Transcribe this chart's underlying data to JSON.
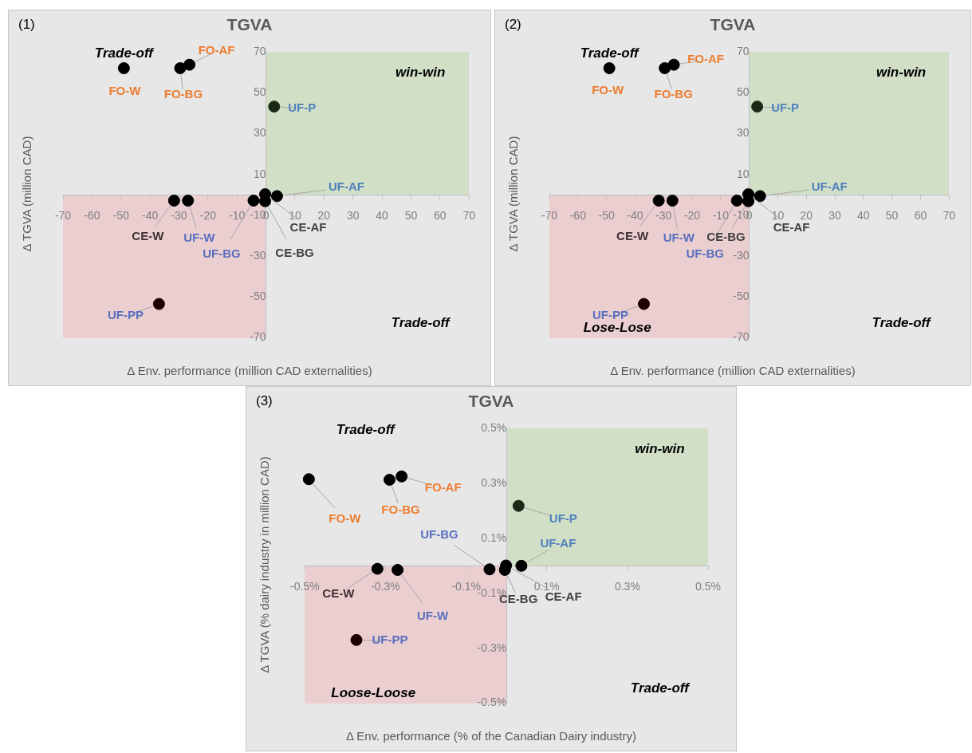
{
  "chart_data": [
    {
      "type": "scatter",
      "subtitle": "(1)",
      "title": "TGVA",
      "xlabel": "Δ Env. performance (million CAD externalities)",
      "ylabel": "Δ TGVA (million CAD)",
      "xlim": [
        -70,
        70
      ],
      "ylim": [
        -70,
        70
      ],
      "xticks": [
        -70,
        -60,
        -50,
        -40,
        -30,
        -20,
        -10,
        0,
        10,
        20,
        30,
        40,
        50,
        60,
        70
      ],
      "yticks": [
        70,
        50,
        30,
        10,
        -10,
        -30,
        -50,
        -70
      ],
      "grid": false,
      "legend": false,
      "marker": "circle",
      "annotations": [
        "Trade-off",
        "win-win",
        "Trade-off"
      ],
      "series": [
        {
          "name": "FO-W",
          "color": "#000000",
          "x": [
            -49
          ],
          "values": [
            62
          ]
        },
        {
          "name": "FO-BG",
          "color": "#000000",
          "x": [
            -29.6
          ],
          "values": [
            62
          ]
        },
        {
          "name": "FO-AF",
          "color": "#000000",
          "x": [
            -26.4
          ],
          "values": [
            63.7
          ]
        },
        {
          "name": "UF-P",
          "color": "#1b2a16",
          "x": [
            2.8
          ],
          "values": [
            43.2
          ]
        },
        {
          "name": "CE-W",
          "color": "#000000",
          "x": [
            -31.7
          ],
          "values": [
            -2.8
          ]
        },
        {
          "name": "UF-W",
          "color": "#000000",
          "x": [
            -26.9
          ],
          "values": [
            -2.8
          ]
        },
        {
          "name": "UF-BG",
          "color": "#000000",
          "x": [
            -4.3
          ],
          "values": [
            -2.8
          ]
        },
        {
          "name": "CE-BG",
          "color": "#000000",
          "x": [
            -0.3
          ],
          "values": [
            -3.1
          ]
        },
        {
          "name": "CE-AF",
          "color": "#000000",
          "x": [
            -0.3
          ],
          "values": [
            0.3
          ]
        },
        {
          "name": "UF-AF",
          "color": "#000000",
          "x": [
            3.8
          ],
          "values": [
            -0.6
          ]
        },
        {
          "name": "UF-PP",
          "color": "#1e0000",
          "x": [
            -36.9
          ],
          "values": [
            -53.4
          ]
        }
      ]
    },
    {
      "type": "scatter",
      "subtitle": "(2)",
      "title": "TGVA",
      "xlabel": "Δ Env. performance (million CAD externalities)",
      "ylabel": "Δ TGVA (million CAD)",
      "xlim": [
        -70,
        70
      ],
      "ylim": [
        -70,
        70
      ],
      "xticks": [
        -70,
        -60,
        -50,
        -40,
        -30,
        -20,
        -10,
        0,
        10,
        20,
        30,
        40,
        50,
        60,
        70
      ],
      "yticks": [
        70,
        50,
        30,
        10,
        -10,
        -30,
        -50,
        -70
      ],
      "grid": false,
      "legend": false,
      "marker": "circle",
      "annotations": [
        "Trade-off",
        "win-win",
        "Trade-off",
        "Lose-Lose"
      ],
      "series": [
        {
          "name": "FO-W",
          "color": "#000000",
          "x": [
            -49
          ],
          "values": [
            62
          ]
        },
        {
          "name": "FO-BG",
          "color": "#000000",
          "x": [
            -29.6
          ],
          "values": [
            62
          ]
        },
        {
          "name": "FO-AF",
          "color": "#000000",
          "x": [
            -26.4
          ],
          "values": [
            63.7
          ]
        },
        {
          "name": "UF-P",
          "color": "#1b2a16",
          "x": [
            2.8
          ],
          "values": [
            43.2
          ]
        },
        {
          "name": "CE-W",
          "color": "#000000",
          "x": [
            -31.7
          ],
          "values": [
            -2.8
          ]
        },
        {
          "name": "UF-W",
          "color": "#000000",
          "x": [
            -26.9
          ],
          "values": [
            -2.8
          ]
        },
        {
          "name": "UF-BG",
          "color": "#000000",
          "x": [
            -4.3
          ],
          "values": [
            -2.8
          ]
        },
        {
          "name": "CE-BG",
          "color": "#000000",
          "x": [
            -0.3
          ],
          "values": [
            -3.1
          ]
        },
        {
          "name": "CE-AF",
          "color": "#000000",
          "x": [
            -0.3
          ],
          "values": [
            0.3
          ]
        },
        {
          "name": "UF-AF",
          "color": "#000000",
          "x": [
            3.8
          ],
          "values": [
            -0.6
          ]
        },
        {
          "name": "UF-PP",
          "color": "#1e0000",
          "x": [
            -36.9
          ],
          "values": [
            -53.4
          ]
        }
      ]
    },
    {
      "type": "scatter",
      "subtitle": "(3)",
      "title": "TGVA",
      "xlabel": "Δ Env. performance (% of the Canadian Dairy industry)",
      "ylabel": "Δ TGVA  (% dairy industry in million CAD)",
      "xlim": [
        -0.5,
        0.5
      ],
      "ylim": [
        -0.5,
        0.5
      ],
      "xticks": [
        {
          "value": -0.5,
          "label": "-0.5%"
        },
        {
          "value": -0.3,
          "label": "-0.3%"
        },
        {
          "value": -0.1,
          "label": "-0.1%"
        },
        {
          "value": 0.1,
          "label": "0.1%"
        },
        {
          "value": 0.3,
          "label": "0.3%"
        },
        {
          "value": 0.5,
          "label": "0.5%"
        }
      ],
      "yticks": [
        {
          "value": 0.5,
          "label": "0.5%"
        },
        {
          "value": 0.3,
          "label": "0.3%"
        },
        {
          "value": 0.1,
          "label": "0.1%"
        },
        {
          "value": -0.1,
          "label": "-0.1%"
        },
        {
          "value": -0.3,
          "label": "-0.3%"
        },
        {
          "value": -0.5,
          "label": "-0.5%"
        }
      ],
      "grid": false,
      "legend": false,
      "marker": "circle",
      "annotations": [
        "Trade-off",
        "win-win",
        "Trade-off",
        "Loose-Loose"
      ],
      "series": [
        {
          "name": "FO-W",
          "color": "#000000",
          "x": [
            -0.49
          ],
          "values": [
            0.315
          ]
        },
        {
          "name": "FO-BG",
          "color": "#000000",
          "x": [
            -0.29
          ],
          "values": [
            0.313
          ]
        },
        {
          "name": "FO-AF",
          "color": "#000000",
          "x": [
            -0.26
          ],
          "values": [
            0.325
          ]
        },
        {
          "name": "UF-P",
          "color": "#1b2a16",
          "x": [
            0.03
          ],
          "values": [
            0.218
          ]
        },
        {
          "name": "CE-W",
          "color": "#000000",
          "x": [
            -0.32
          ],
          "values": [
            -0.011
          ]
        },
        {
          "name": "UF-W",
          "color": "#000000",
          "x": [
            -0.27
          ],
          "values": [
            -0.015
          ]
        },
        {
          "name": "UF-BG",
          "color": "#000000",
          "x": [
            -0.042
          ],
          "values": [
            -0.013
          ]
        },
        {
          "name": "CE-BG",
          "color": "#000000",
          "x": [
            -0.004
          ],
          "values": [
            -0.015
          ]
        },
        {
          "name": "CE-AF",
          "color": "#000000",
          "x": [
            -0.001
          ],
          "values": [
            0.001
          ]
        },
        {
          "name": "UF-AF",
          "color": "#000000",
          "x": [
            0.037
          ],
          "values": [
            0
          ]
        },
        {
          "name": "UF-PP",
          "color": "#1e0000",
          "x": [
            -0.372
          ],
          "values": [
            -0.27
          ]
        }
      ]
    }
  ]
}
